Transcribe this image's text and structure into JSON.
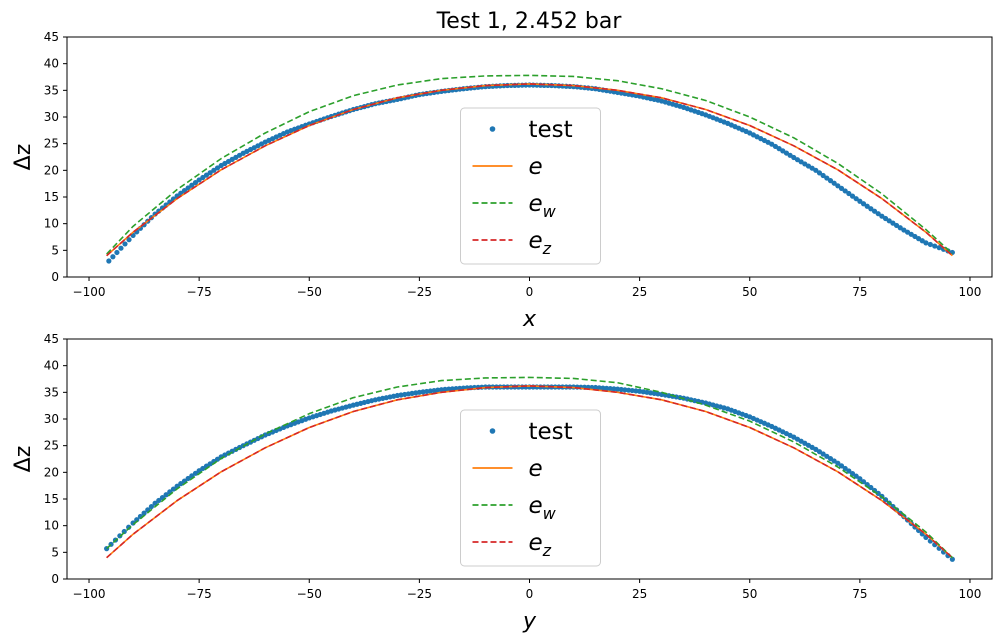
{
  "figure": {
    "title": "Test 1, 2.452 bar"
  },
  "chart_data": [
    {
      "type": "line",
      "title": "Test 1, 2.452 bar",
      "xlabel": "x",
      "ylabel": "Δz",
      "xlim": [
        -105,
        105
      ],
      "ylim": [
        0,
        45
      ],
      "xticks": [
        -100,
        -75,
        -50,
        -25,
        0,
        25,
        50,
        75,
        100
      ],
      "yticks": [
        0,
        5,
        10,
        15,
        20,
        25,
        30,
        35,
        40,
        45
      ],
      "grid": false,
      "legend": {
        "placement": "bottom-center",
        "entries": [
          {
            "label": "test",
            "sub": "",
            "style": "dots",
            "color": "#1f77b4"
          },
          {
            "label": "e",
            "sub": "",
            "style": "solid",
            "color": "#ff7f0e"
          },
          {
            "label": "e",
            "sub": "w",
            "style": "dashed",
            "color": "#2ca02c"
          },
          {
            "label": "e",
            "sub": "z",
            "style": "dashed",
            "color": "#d62728"
          }
        ]
      },
      "series": [
        {
          "name": "test",
          "style": "dots",
          "color": "#1f77b4",
          "x": [
            -95.5,
            -90,
            -85,
            -80,
            -75,
            -70,
            -65,
            -60,
            -55,
            -50,
            -45,
            -40,
            -35,
            -30,
            -25,
            -20,
            -15,
            -10,
            -5,
            0,
            5,
            10,
            15,
            20,
            25,
            30,
            35,
            40,
            45,
            50,
            55,
            60,
            65,
            70,
            75,
            80,
            85,
            90,
            96
          ],
          "y": [
            3.0,
            7.8,
            11.8,
            15.2,
            18.2,
            20.9,
            23.2,
            25.3,
            27.2,
            28.7,
            30.1,
            31.4,
            32.5,
            33.3,
            34.2,
            34.8,
            35.3,
            35.7,
            35.9,
            36.0,
            35.9,
            35.7,
            35.3,
            34.6,
            33.9,
            33.0,
            31.8,
            30.4,
            28.8,
            27.0,
            24.9,
            22.4,
            20.0,
            17.1,
            14.2,
            11.4,
            8.8,
            6.4,
            4.6
          ]
        },
        {
          "name": "e",
          "style": "solid",
          "color": "#ff7f0e",
          "x": [
            -96,
            -90,
            -80,
            -70,
            -60,
            -50,
            -40,
            -30,
            -20,
            -10,
            0,
            10,
            20,
            30,
            40,
            50,
            60,
            70,
            80,
            90,
            96
          ],
          "y": [
            4.0,
            8.4,
            14.7,
            20.1,
            24.6,
            28.4,
            31.4,
            33.6,
            35.0,
            35.9,
            36.2,
            35.9,
            35.0,
            33.6,
            31.4,
            28.4,
            24.6,
            20.1,
            14.7,
            8.4,
            4.0
          ]
        },
        {
          "name": "e_w",
          "style": "dashed",
          "color": "#2ca02c",
          "x": [
            -96,
            -90,
            -80,
            -70,
            -60,
            -50,
            -40,
            -30,
            -20,
            -10,
            0,
            10,
            20,
            30,
            40,
            50,
            60,
            70,
            80,
            90,
            96
          ],
          "y": [
            4.3,
            9.5,
            16.4,
            22.2,
            27.0,
            31.0,
            34.0,
            36.0,
            37.2,
            37.7,
            37.8,
            37.6,
            36.8,
            35.3,
            33.1,
            30.0,
            26.1,
            21.3,
            15.6,
            8.9,
            4.4
          ]
        },
        {
          "name": "e_z",
          "style": "dashed",
          "color": "#d62728",
          "x": [
            -96,
            -90,
            -80,
            -70,
            -60,
            -50,
            -40,
            -30,
            -20,
            -10,
            0,
            10,
            20,
            30,
            40,
            50,
            60,
            70,
            80,
            90,
            96
          ],
          "y": [
            4.0,
            8.4,
            14.7,
            20.1,
            24.6,
            28.4,
            31.4,
            33.6,
            35.0,
            35.9,
            36.2,
            35.9,
            35.0,
            33.6,
            31.4,
            28.4,
            24.6,
            20.1,
            14.7,
            8.4,
            4.0
          ]
        }
      ]
    },
    {
      "type": "line",
      "title": "",
      "xlabel": "y",
      "ylabel": "Δz",
      "xlim": [
        -105,
        105
      ],
      "ylim": [
        0,
        45
      ],
      "xticks": [
        -100,
        -75,
        -50,
        -25,
        0,
        25,
        50,
        75,
        100
      ],
      "yticks": [
        0,
        5,
        10,
        15,
        20,
        25,
        30,
        35,
        40,
        45
      ],
      "grid": false,
      "legend": {
        "placement": "bottom-center",
        "entries": [
          {
            "label": "test",
            "sub": "",
            "style": "dots",
            "color": "#1f77b4"
          },
          {
            "label": "e",
            "sub": "",
            "style": "solid",
            "color": "#ff7f0e"
          },
          {
            "label": "e",
            "sub": "w",
            "style": "dashed",
            "color": "#2ca02c"
          },
          {
            "label": "e",
            "sub": "z",
            "style": "dashed",
            "color": "#d62728"
          }
        ]
      },
      "series": [
        {
          "name": "test",
          "style": "dots",
          "color": "#1f77b4",
          "x": [
            -96,
            -90,
            -85,
            -80,
            -75,
            -70,
            -65,
            -60,
            -55,
            -50,
            -45,
            -40,
            -35,
            -30,
            -25,
            -20,
            -15,
            -10,
            -5,
            0,
            5,
            10,
            15,
            20,
            25,
            30,
            35,
            40,
            45,
            50,
            55,
            60,
            65,
            70,
            75,
            80,
            85,
            90,
            96
          ],
          "y": [
            5.7,
            10.5,
            14.2,
            17.4,
            20.3,
            22.9,
            25.0,
            27.0,
            28.7,
            30.2,
            31.5,
            32.6,
            33.6,
            34.4,
            35.0,
            35.5,
            35.8,
            36.0,
            36.0,
            36.0,
            36.0,
            36.0,
            35.9,
            35.6,
            35.2,
            34.6,
            33.9,
            33.0,
            31.9,
            30.4,
            28.6,
            26.6,
            24.3,
            21.7,
            18.8,
            15.5,
            11.7,
            7.8,
            3.7
          ]
        },
        {
          "name": "e",
          "style": "solid",
          "color": "#ff7f0e",
          "x": [
            -96,
            -90,
            -80,
            -70,
            -60,
            -50,
            -40,
            -30,
            -20,
            -10,
            0,
            10,
            20,
            30,
            40,
            50,
            60,
            70,
            80,
            90,
            96
          ],
          "y": [
            4.0,
            8.4,
            14.7,
            20.1,
            24.6,
            28.4,
            31.4,
            33.6,
            35.0,
            35.9,
            36.2,
            35.9,
            35.0,
            33.6,
            31.4,
            28.4,
            24.6,
            20.1,
            14.7,
            8.4,
            4.0
          ]
        },
        {
          "name": "e_w",
          "style": "dashed",
          "color": "#2ca02c",
          "x": [
            -96,
            -90,
            -80,
            -70,
            -60,
            -50,
            -40,
            -30,
            -20,
            -10,
            0,
            10,
            20,
            30,
            40,
            50,
            60,
            70,
            80,
            90,
            96
          ],
          "y": [
            5.7,
            10.2,
            16.9,
            22.6,
            27.2,
            31.0,
            34.0,
            36.0,
            37.2,
            37.7,
            37.8,
            37.6,
            36.8,
            35.0,
            32.6,
            29.6,
            25.7,
            21.0,
            15.4,
            8.8,
            4.0
          ]
        },
        {
          "name": "e_z",
          "style": "dashed",
          "color": "#d62728",
          "x": [
            -96,
            -90,
            -80,
            -70,
            -60,
            -50,
            -40,
            -30,
            -20,
            -10,
            0,
            10,
            20,
            30,
            40,
            50,
            60,
            70,
            80,
            90,
            96
          ],
          "y": [
            4.0,
            8.4,
            14.7,
            20.1,
            24.6,
            28.4,
            31.4,
            33.6,
            35.0,
            35.9,
            36.2,
            35.9,
            35.0,
            33.6,
            31.4,
            28.4,
            24.6,
            20.1,
            14.7,
            8.4,
            4.0
          ]
        }
      ]
    }
  ]
}
